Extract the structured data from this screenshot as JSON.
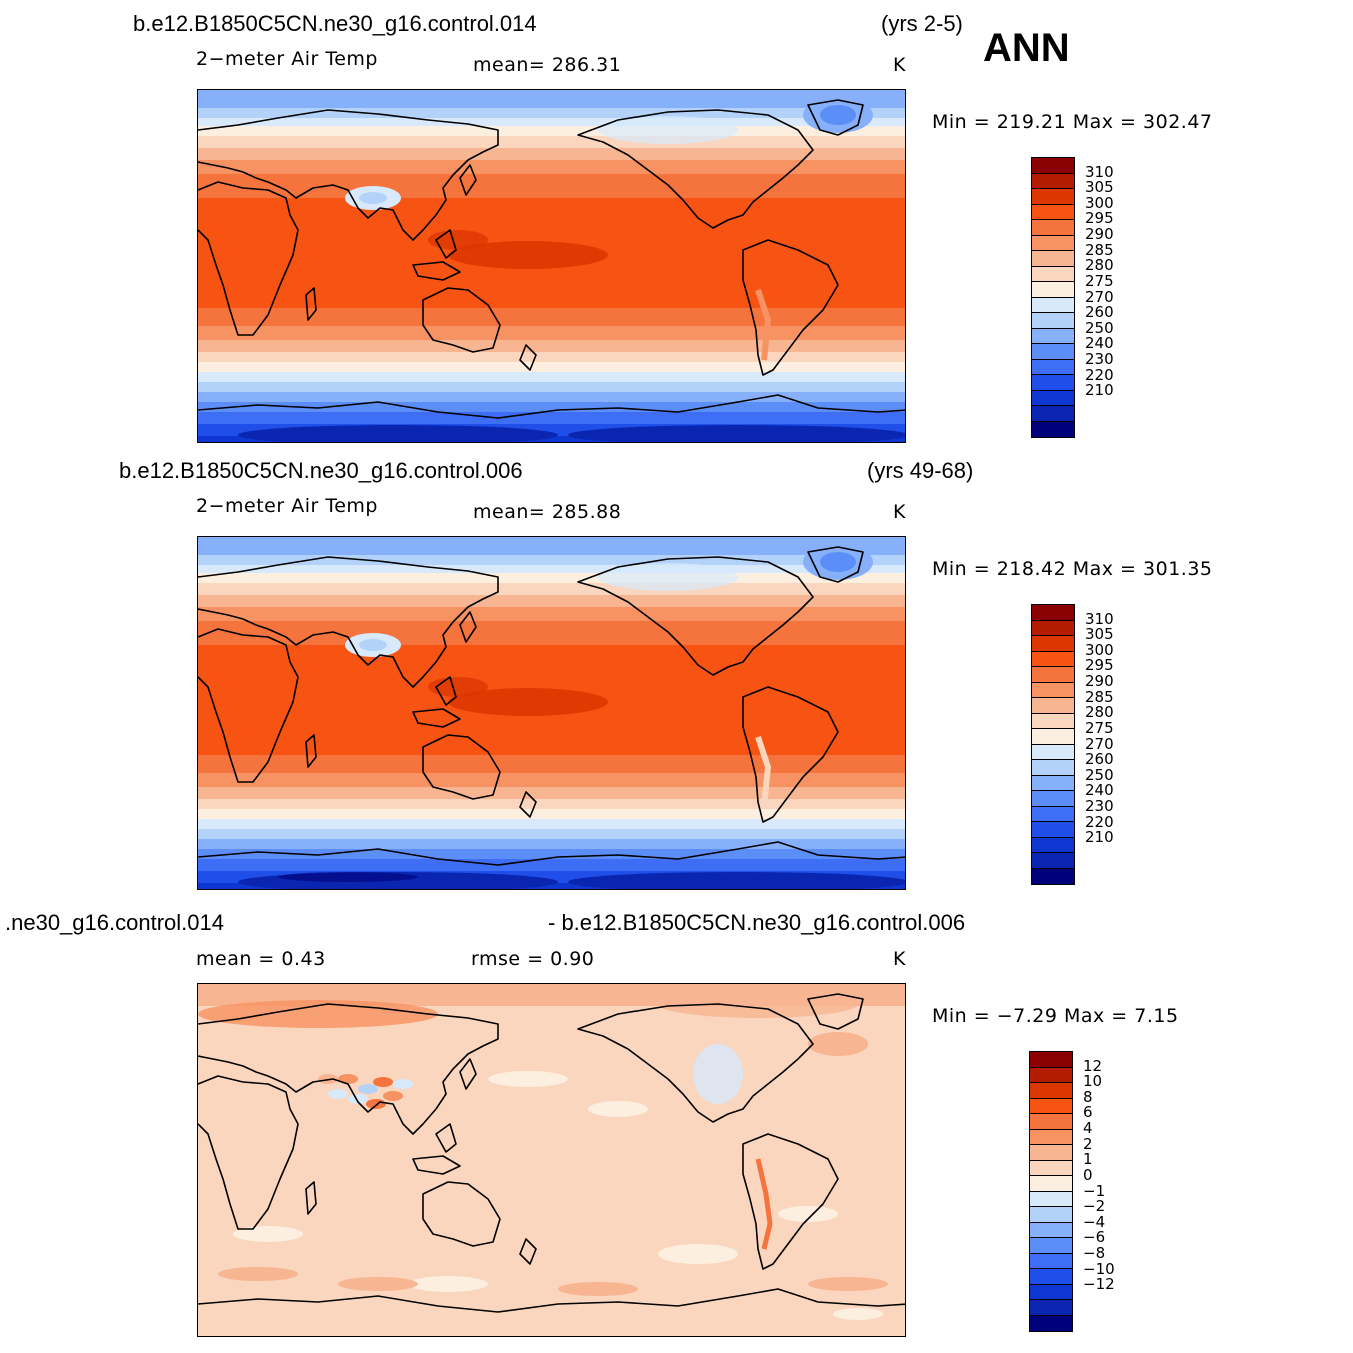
{
  "season": "ANN",
  "panels": [
    {
      "case_title": "b.e12.B1850C5CN.ne30_g16.control.014",
      "years": "(yrs 2-5)",
      "variable": "2−meter Air Temp",
      "stat1": "mean=  286.31",
      "stat2": "",
      "units": "K",
      "minmax": "Min  =  219.21  Max  =  302.47",
      "colorbar": {
        "labels": [
          "310",
          "305",
          "300",
          "295",
          "290",
          "285",
          "280",
          "275",
          "270",
          "260",
          "250",
          "240",
          "230",
          "220",
          "210"
        ],
        "colors": [
          "#8b0000",
          "#b31c00",
          "#dc3700",
          "#f75414",
          "#f5733d",
          "#f79262",
          "#f8b592",
          "#fad6be",
          "#fdefe0",
          "#d7e9fb",
          "#b3d2fa",
          "#87b0fa",
          "#5c8ef7",
          "#3d6ef5",
          "#1f4ee8",
          "#0e36d0",
          "#0a26b0",
          "#00007a"
        ],
        "field": "temp_a"
      }
    },
    {
      "case_title": "b.e12.B1850C5CN.ne30_g16.control.006",
      "years": "(yrs 49-68)",
      "variable": "2−meter Air Temp",
      "stat1": "mean=  285.88",
      "stat2": "",
      "units": "K",
      "minmax": "Min  =  218.42  Max  =  301.35",
      "colorbar": {
        "labels": [
          "310",
          "305",
          "300",
          "295",
          "290",
          "285",
          "280",
          "275",
          "270",
          "260",
          "250",
          "240",
          "230",
          "220",
          "210"
        ],
        "colors": [
          "#8b0000",
          "#b31c00",
          "#dc3700",
          "#f75414",
          "#f5733d",
          "#f79262",
          "#f8b592",
          "#fad6be",
          "#fdefe0",
          "#d7e9fb",
          "#b3d2fa",
          "#87b0fa",
          "#5c8ef7",
          "#3d6ef5",
          "#1f4ee8",
          "#0e36d0",
          "#0a26b0",
          "#00007a"
        ],
        "field": "temp_b"
      }
    },
    {
      "case_title_left": ".ne30_g16.control.014",
      "case_title_right": "- b.e12.B1850C5CN.ne30_g16.control.006",
      "stat1": "mean  =     0.43",
      "stat2": "rmse  =     0.90",
      "units": "K",
      "minmax": "Min  =    −7.29  Max  =      7.15",
      "colorbar": {
        "labels": [
          "12",
          "10",
          "8",
          "6",
          "4",
          "2",
          "1",
          "0",
          "−1",
          "−2",
          "−4",
          "−6",
          "−8",
          "−10",
          "−12"
        ],
        "colors": [
          "#8b0000",
          "#b31c00",
          "#dc3700",
          "#f75414",
          "#f5733d",
          "#f79262",
          "#f8b592",
          "#fad6be",
          "#fdefe0",
          "#d7e9fb",
          "#b3d2fa",
          "#87b0fa",
          "#5c8ef7",
          "#3d6ef5",
          "#1f4ee8",
          "#0e36d0",
          "#0a26b0",
          "#00007a"
        ],
        "field": "diff"
      }
    }
  ]
}
